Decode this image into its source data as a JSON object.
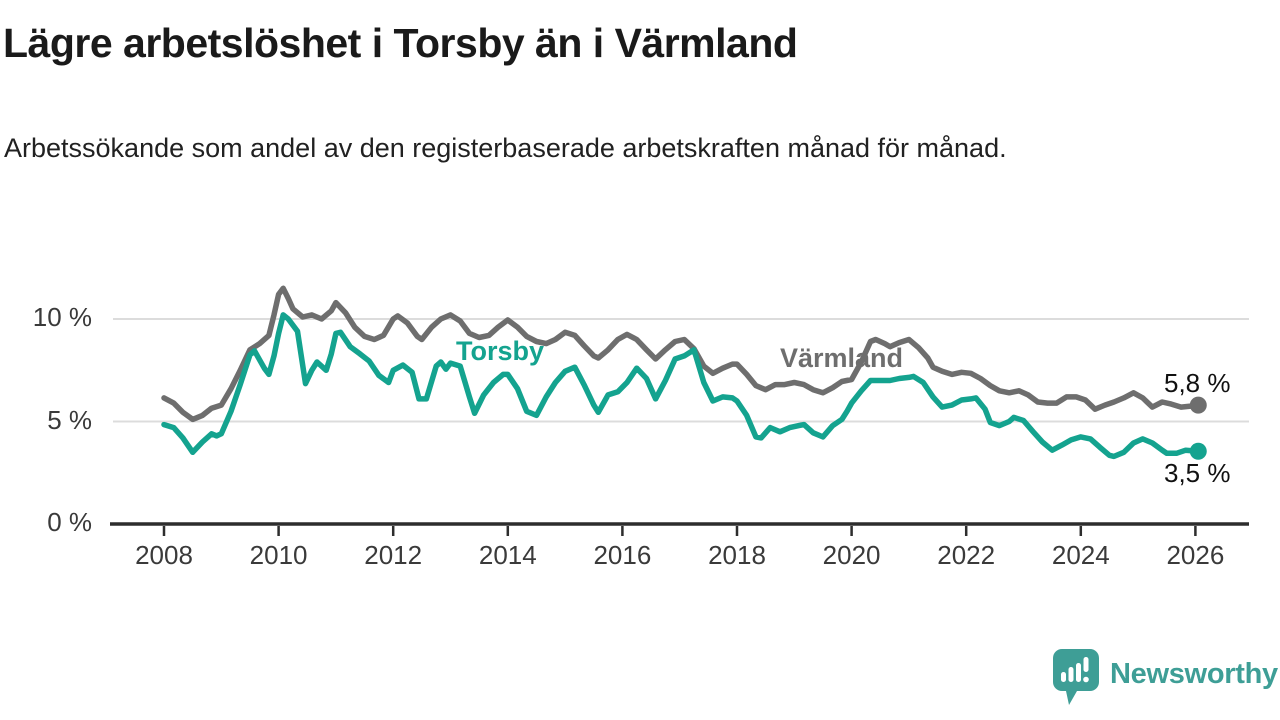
{
  "header": {
    "title": "Lägre arbetslöshet i Torsby än i Värmland",
    "subtitle": "Arbetssökande som andel av den registerbaserade arbetskraften månad för månad."
  },
  "footer": {
    "brand": "Newsworthy",
    "brand_color": "#3E9E96"
  },
  "chart_data": {
    "type": "line",
    "title": "Lägre arbetslöshet i Torsby än i Värmland",
    "xlabel": "",
    "ylabel": "Arbetssökande som andel av den registerbaserade arbetskraften",
    "x_range": [
      2008,
      2026.1
    ],
    "ylim": [
      0,
      12
    ],
    "grid": "horizontal",
    "legend_position": "inline-labels",
    "y_ticks": [
      {
        "value": 10,
        "label": "10 %"
      },
      {
        "value": 5,
        "label": "5 %"
      },
      {
        "value": 0,
        "label": "0 %"
      }
    ],
    "x_ticks": [
      {
        "year": 2008,
        "label": "2008"
      },
      {
        "year": 2010,
        "label": "2010"
      },
      {
        "year": 2012,
        "label": "2012"
      },
      {
        "year": 2014,
        "label": "2014"
      },
      {
        "year": 2016,
        "label": "2016"
      },
      {
        "year": 2018,
        "label": "2018"
      },
      {
        "year": 2020,
        "label": "2020"
      },
      {
        "year": 2022,
        "label": "2022"
      },
      {
        "year": 2024,
        "label": "2024"
      },
      {
        "year": 2026,
        "label": "2026"
      }
    ],
    "series": [
      {
        "name": "Torsby",
        "inline_label": "Torsby",
        "end_label": "3,5 %",
        "last_value_pct": 3.5,
        "color": "#14A38F",
        "points": [
          [
            2008.0,
            4.85
          ],
          [
            2008.17,
            4.7
          ],
          [
            2008.33,
            4.2
          ],
          [
            2008.5,
            3.5
          ],
          [
            2008.67,
            4.0
          ],
          [
            2008.83,
            4.4
          ],
          [
            2008.92,
            4.3
          ],
          [
            2009.0,
            4.4
          ],
          [
            2009.17,
            5.5
          ],
          [
            2009.33,
            6.8
          ],
          [
            2009.5,
            8.25
          ],
          [
            2009.58,
            8.45
          ],
          [
            2009.75,
            7.6
          ],
          [
            2009.83,
            7.3
          ],
          [
            2009.92,
            8.2
          ],
          [
            2010.0,
            9.3
          ],
          [
            2010.08,
            10.2
          ],
          [
            2010.17,
            10.0
          ],
          [
            2010.33,
            9.4
          ],
          [
            2010.47,
            6.85
          ],
          [
            2010.58,
            7.5
          ],
          [
            2010.67,
            7.9
          ],
          [
            2010.83,
            7.5
          ],
          [
            2010.92,
            8.3
          ],
          [
            2011.0,
            9.3
          ],
          [
            2011.08,
            9.35
          ],
          [
            2011.25,
            8.65
          ],
          [
            2011.42,
            8.3
          ],
          [
            2011.58,
            7.95
          ],
          [
            2011.75,
            7.25
          ],
          [
            2011.92,
            6.9
          ],
          [
            2012.0,
            7.5
          ],
          [
            2012.17,
            7.75
          ],
          [
            2012.33,
            7.4
          ],
          [
            2012.45,
            6.1
          ],
          [
            2012.58,
            6.1
          ],
          [
            2012.75,
            7.7
          ],
          [
            2012.83,
            7.9
          ],
          [
            2012.92,
            7.55
          ],
          [
            2013.0,
            7.85
          ],
          [
            2013.17,
            7.7
          ],
          [
            2013.33,
            6.2
          ],
          [
            2013.42,
            5.4
          ],
          [
            2013.58,
            6.3
          ],
          [
            2013.75,
            6.9
          ],
          [
            2013.92,
            7.3
          ],
          [
            2014.0,
            7.3
          ],
          [
            2014.17,
            6.6
          ],
          [
            2014.33,
            5.5
          ],
          [
            2014.5,
            5.3
          ],
          [
            2014.67,
            6.2
          ],
          [
            2014.83,
            6.9
          ],
          [
            2015.0,
            7.45
          ],
          [
            2015.17,
            7.65
          ],
          [
            2015.33,
            6.8
          ],
          [
            2015.5,
            5.8
          ],
          [
            2015.58,
            5.45
          ],
          [
            2015.75,
            6.3
          ],
          [
            2015.92,
            6.45
          ],
          [
            2016.08,
            6.9
          ],
          [
            2016.25,
            7.6
          ],
          [
            2016.42,
            7.1
          ],
          [
            2016.58,
            6.1
          ],
          [
            2016.75,
            7.0
          ],
          [
            2016.92,
            8.05
          ],
          [
            2017.08,
            8.2
          ],
          [
            2017.25,
            8.5
          ],
          [
            2017.42,
            6.9
          ],
          [
            2017.58,
            6.0
          ],
          [
            2017.75,
            6.2
          ],
          [
            2017.92,
            6.15
          ],
          [
            2018.0,
            6.0
          ],
          [
            2018.17,
            5.3
          ],
          [
            2018.33,
            4.25
          ],
          [
            2018.42,
            4.2
          ],
          [
            2018.58,
            4.7
          ],
          [
            2018.75,
            4.5
          ],
          [
            2018.92,
            4.7
          ],
          [
            2019.08,
            4.8
          ],
          [
            2019.17,
            4.85
          ],
          [
            2019.33,
            4.45
          ],
          [
            2019.5,
            4.25
          ],
          [
            2019.67,
            4.8
          ],
          [
            2019.83,
            5.1
          ],
          [
            2019.92,
            5.5
          ],
          [
            2020.0,
            5.9
          ],
          [
            2020.17,
            6.5
          ],
          [
            2020.33,
            7.0
          ],
          [
            2020.5,
            7.0
          ],
          [
            2020.67,
            7.0
          ],
          [
            2020.83,
            7.1
          ],
          [
            2021.0,
            7.15
          ],
          [
            2021.08,
            7.2
          ],
          [
            2021.25,
            6.9
          ],
          [
            2021.42,
            6.2
          ],
          [
            2021.58,
            5.7
          ],
          [
            2021.75,
            5.8
          ],
          [
            2021.92,
            6.05
          ],
          [
            2022.08,
            6.1
          ],
          [
            2022.17,
            6.15
          ],
          [
            2022.33,
            5.6
          ],
          [
            2022.42,
            4.95
          ],
          [
            2022.58,
            4.8
          ],
          [
            2022.75,
            5.0
          ],
          [
            2022.83,
            5.2
          ],
          [
            2023.0,
            5.05
          ],
          [
            2023.17,
            4.5
          ],
          [
            2023.33,
            4.0
          ],
          [
            2023.5,
            3.6
          ],
          [
            2023.67,
            3.85
          ],
          [
            2023.83,
            4.1
          ],
          [
            2024.0,
            4.25
          ],
          [
            2024.17,
            4.15
          ],
          [
            2024.33,
            3.75
          ],
          [
            2024.5,
            3.35
          ],
          [
            2024.58,
            3.3
          ],
          [
            2024.75,
            3.5
          ],
          [
            2024.92,
            3.95
          ],
          [
            2025.08,
            4.15
          ],
          [
            2025.25,
            3.95
          ],
          [
            2025.42,
            3.6
          ],
          [
            2025.5,
            3.45
          ],
          [
            2025.67,
            3.45
          ],
          [
            2025.83,
            3.6
          ],
          [
            2026.05,
            3.55
          ]
        ]
      },
      {
        "name": "Värmland",
        "inline_label": "Värmland",
        "end_label": "5,8 %",
        "last_value_pct": 5.8,
        "color": "#6E6E6E",
        "points": [
          [
            2008.0,
            6.15
          ],
          [
            2008.17,
            5.9
          ],
          [
            2008.33,
            5.45
          ],
          [
            2008.5,
            5.1
          ],
          [
            2008.67,
            5.3
          ],
          [
            2008.83,
            5.65
          ],
          [
            2009.0,
            5.8
          ],
          [
            2009.17,
            6.6
          ],
          [
            2009.33,
            7.5
          ],
          [
            2009.5,
            8.5
          ],
          [
            2009.67,
            8.8
          ],
          [
            2009.83,
            9.2
          ],
          [
            2009.92,
            10.2
          ],
          [
            2010.0,
            11.2
          ],
          [
            2010.08,
            11.5
          ],
          [
            2010.17,
            11.0
          ],
          [
            2010.25,
            10.5
          ],
          [
            2010.42,
            10.1
          ],
          [
            2010.58,
            10.2
          ],
          [
            2010.75,
            10.0
          ],
          [
            2010.92,
            10.4
          ],
          [
            2011.0,
            10.8
          ],
          [
            2011.17,
            10.3
          ],
          [
            2011.33,
            9.6
          ],
          [
            2011.5,
            9.15
          ],
          [
            2011.67,
            9.0
          ],
          [
            2011.83,
            9.2
          ],
          [
            2012.0,
            10.0
          ],
          [
            2012.08,
            10.15
          ],
          [
            2012.25,
            9.8
          ],
          [
            2012.42,
            9.15
          ],
          [
            2012.5,
            9.0
          ],
          [
            2012.67,
            9.6
          ],
          [
            2012.83,
            10.0
          ],
          [
            2013.0,
            10.2
          ],
          [
            2013.17,
            9.9
          ],
          [
            2013.33,
            9.3
          ],
          [
            2013.5,
            9.1
          ],
          [
            2013.67,
            9.2
          ],
          [
            2013.83,
            9.6
          ],
          [
            2014.0,
            9.95
          ],
          [
            2014.17,
            9.6
          ],
          [
            2014.33,
            9.15
          ],
          [
            2014.5,
            8.9
          ],
          [
            2014.67,
            8.8
          ],
          [
            2014.83,
            9.0
          ],
          [
            2015.0,
            9.35
          ],
          [
            2015.17,
            9.2
          ],
          [
            2015.33,
            8.7
          ],
          [
            2015.5,
            8.2
          ],
          [
            2015.58,
            8.1
          ],
          [
            2015.75,
            8.5
          ],
          [
            2015.92,
            9.0
          ],
          [
            2016.08,
            9.25
          ],
          [
            2016.25,
            9.0
          ],
          [
            2016.42,
            8.5
          ],
          [
            2016.58,
            8.05
          ],
          [
            2016.75,
            8.5
          ],
          [
            2016.92,
            8.9
          ],
          [
            2017.08,
            9.0
          ],
          [
            2017.25,
            8.55
          ],
          [
            2017.42,
            7.7
          ],
          [
            2017.58,
            7.35
          ],
          [
            2017.75,
            7.6
          ],
          [
            2017.92,
            7.8
          ],
          [
            2018.0,
            7.8
          ],
          [
            2018.17,
            7.3
          ],
          [
            2018.33,
            6.75
          ],
          [
            2018.5,
            6.55
          ],
          [
            2018.67,
            6.8
          ],
          [
            2018.83,
            6.8
          ],
          [
            2019.0,
            6.9
          ],
          [
            2019.17,
            6.8
          ],
          [
            2019.33,
            6.55
          ],
          [
            2019.5,
            6.4
          ],
          [
            2019.67,
            6.65
          ],
          [
            2019.83,
            6.95
          ],
          [
            2020.0,
            7.05
          ],
          [
            2020.17,
            7.9
          ],
          [
            2020.33,
            8.9
          ],
          [
            2020.42,
            9.0
          ],
          [
            2020.58,
            8.8
          ],
          [
            2020.67,
            8.65
          ],
          [
            2020.83,
            8.85
          ],
          [
            2021.0,
            9.0
          ],
          [
            2021.17,
            8.6
          ],
          [
            2021.33,
            8.1
          ],
          [
            2021.42,
            7.65
          ],
          [
            2021.58,
            7.45
          ],
          [
            2021.75,
            7.3
          ],
          [
            2021.92,
            7.4
          ],
          [
            2022.08,
            7.35
          ],
          [
            2022.25,
            7.1
          ],
          [
            2022.42,
            6.75
          ],
          [
            2022.58,
            6.5
          ],
          [
            2022.75,
            6.4
          ],
          [
            2022.92,
            6.5
          ],
          [
            2023.08,
            6.3
          ],
          [
            2023.25,
            5.95
          ],
          [
            2023.42,
            5.9
          ],
          [
            2023.58,
            5.9
          ],
          [
            2023.75,
            6.2
          ],
          [
            2023.92,
            6.2
          ],
          [
            2024.08,
            6.05
          ],
          [
            2024.25,
            5.6
          ],
          [
            2024.42,
            5.8
          ],
          [
            2024.58,
            5.95
          ],
          [
            2024.75,
            6.15
          ],
          [
            2024.92,
            6.4
          ],
          [
            2025.08,
            6.15
          ],
          [
            2025.25,
            5.7
          ],
          [
            2025.42,
            5.95
          ],
          [
            2025.58,
            5.85
          ],
          [
            2025.75,
            5.7
          ],
          [
            2025.92,
            5.75
          ],
          [
            2026.05,
            5.8
          ]
        ]
      }
    ]
  }
}
